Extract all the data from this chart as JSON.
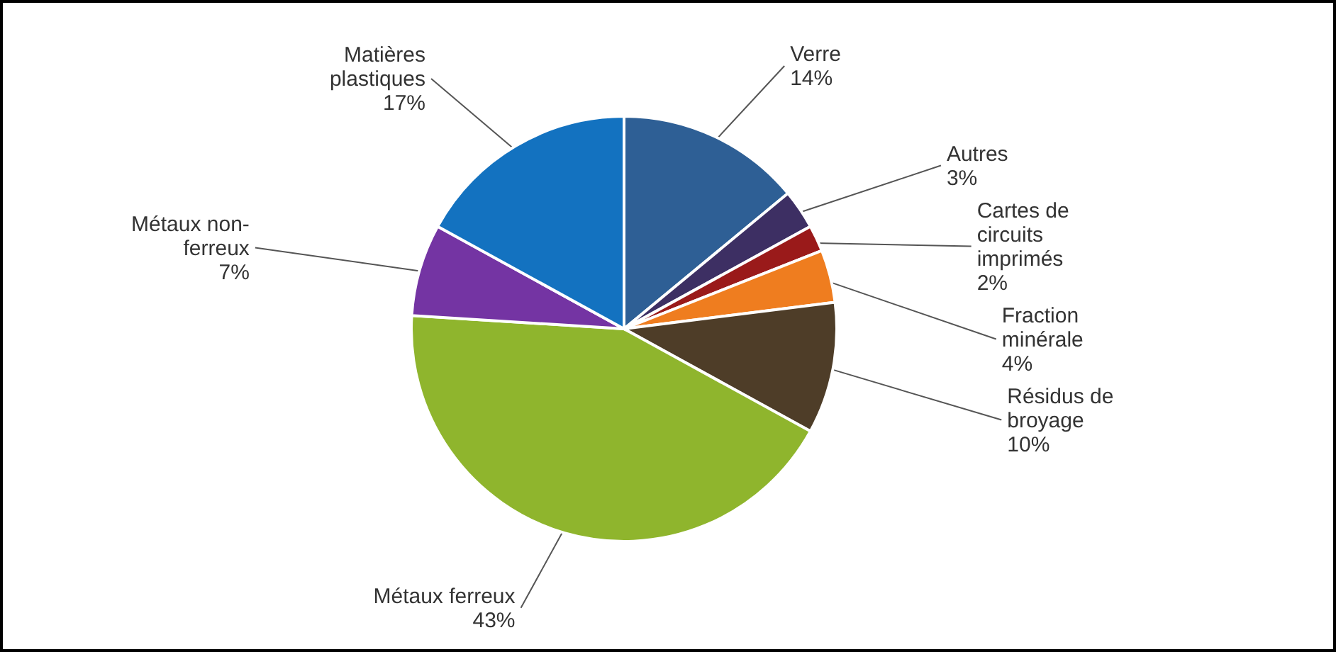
{
  "chart_data": {
    "type": "pie",
    "categories": [
      "Verre",
      "Autres",
      "Cartes de circuits imprimés",
      "Fraction minérale",
      "Résidus de broyage",
      "Métaux ferreux",
      "Métaux non-ferreux",
      "Matières plastiques"
    ],
    "values": [
      14,
      3,
      2,
      4,
      10,
      43,
      7,
      17
    ],
    "colors": [
      "#2e5f95",
      "#3d2f63",
      "#9a1a1a",
      "#ef7d1f",
      "#4e3d28",
      "#8fb52d",
      "#7434a3",
      "#1372c0"
    ],
    "value_labels": [
      "14%",
      "3%",
      "2%",
      "4%",
      "10%",
      "43%",
      "7%",
      "17%"
    ]
  }
}
